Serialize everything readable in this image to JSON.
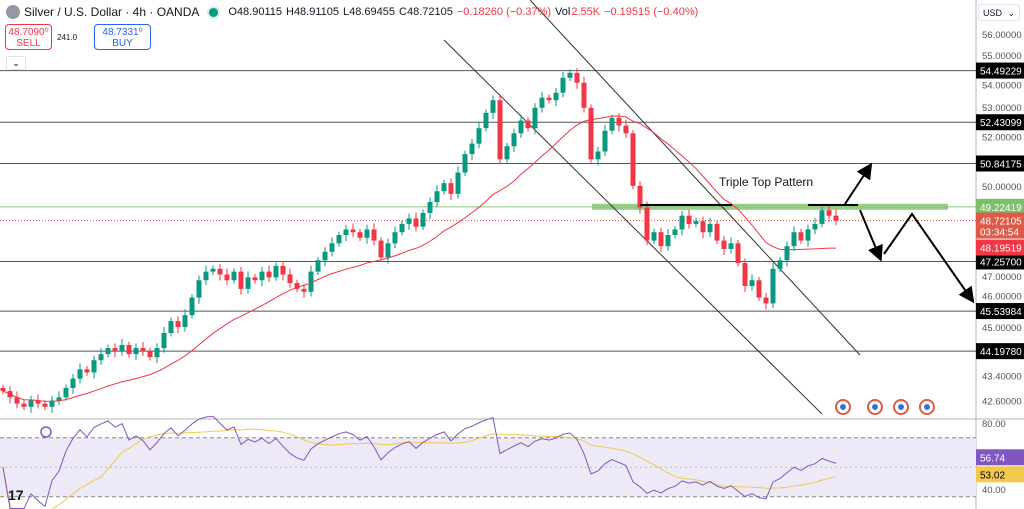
{
  "header": {
    "symbol": "Silver / U.S. Dollar · 4h · OANDA",
    "open": "O48.90115",
    "high": "H48.91105",
    "low": "L48.69455",
    "close": "C48.72105",
    "change": "−0.18260 (−0.37%)",
    "vol_label": "Vol",
    "vol": "2.55K",
    "vol_change": "−0.19515 (−0.40%)"
  },
  "trade": {
    "sell_price": "48.7090⁰",
    "sell_label": "SELL",
    "spread": "241.0",
    "buy_price": "48.7331⁰",
    "buy_label": "BUY"
  },
  "currency": "USD",
  "colors": {
    "up": "#089981",
    "down": "#f23645",
    "ma": "#f23645",
    "rsi": "#7e57c2",
    "rsi_ma": "#f2c94c",
    "support_band": "#8bc87a"
  },
  "chart_data": {
    "type": "candlestick",
    "scale": "log",
    "timeframe": "4h",
    "ylim": [
      42.2,
      56.6
    ],
    "y_ticks": [
      "56.00000",
      "55.00000",
      "54.00000",
      "53.00000",
      "52.00000",
      "50.00000",
      "47.00000",
      "46.00000",
      "45.00000",
      "43.40000",
      "42.60000"
    ],
    "closes": [
      42.9,
      42.7,
      42.5,
      42.4,
      42.6,
      42.5,
      42.4,
      42.6,
      42.7,
      43.0,
      43.3,
      43.6,
      43.5,
      43.9,
      44.1,
      44.3,
      44.2,
      44.4,
      44.1,
      44.3,
      44.2,
      44.0,
      44.3,
      44.8,
      45.2,
      45.0,
      45.4,
      46.0,
      46.6,
      46.9,
      47.0,
      46.8,
      46.6,
      46.9,
      46.3,
      46.7,
      46.6,
      46.9,
      46.7,
      47.1,
      46.8,
      46.5,
      46.3,
      46.2,
      46.9,
      47.3,
      47.6,
      47.9,
      48.2,
      48.4,
      48.3,
      48.1,
      48.4,
      48.0,
      47.4,
      47.9,
      48.3,
      48.6,
      48.8,
      48.5,
      49.0,
      49.4,
      49.8,
      50.1,
      49.7,
      50.5,
      51.2,
      51.6,
      52.2,
      52.8,
      53.3,
      51.0,
      51.5,
      52.0,
      52.5,
      52.2,
      53.0,
      53.4,
      53.3,
      53.6,
      54.2,
      54.4,
      54.0,
      53.0,
      51.0,
      51.3,
      52.1,
      52.6,
      52.3,
      52.0,
      50.0,
      49.2,
      48.0,
      48.3,
      47.8,
      48.2,
      48.4,
      48.9,
      48.6,
      48.7,
      48.3,
      48.6,
      48.0,
      47.7,
      47.9,
      47.2,
      46.4,
      46.6,
      46.0,
      45.8,
      47.0,
      47.3,
      47.8,
      48.3,
      48.0,
      48.4,
      48.6,
      49.1,
      48.9,
      48.72
    ],
    "levels": [
      "54.49229",
      "52.43099",
      "50.84175",
      "47.25700",
      "45.53984",
      "44.19780"
    ],
    "resistance": "49.22419",
    "last_price": "48.72105",
    "countdown": "03:34:54",
    "ma_value": "48.19519",
    "annotation": "Triple Top Pattern",
    "rsi": {
      "ylim": [
        20,
        100
      ],
      "ticks": [
        "80.00",
        "40.00"
      ],
      "bands": [
        70,
        30
      ],
      "value": "56.74",
      "ma_value": "53.02"
    }
  }
}
